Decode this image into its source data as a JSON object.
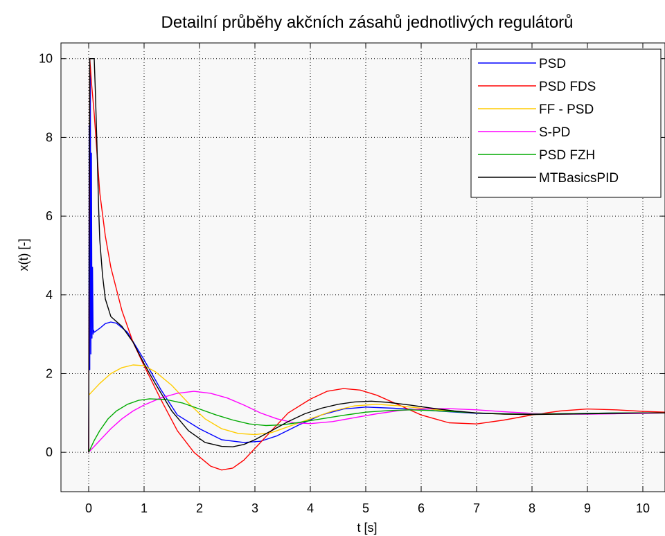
{
  "chart_data": {
    "type": "line",
    "title": "Detailní průběhy akčních zásahů jednotlivých regulátorů",
    "xlabel": "t [s]",
    "ylabel": "x(t) [-]",
    "xlim": [
      -0.5,
      10.4
    ],
    "ylim": [
      -1,
      10.4
    ],
    "xticks": [
      0,
      1,
      2,
      3,
      4,
      5,
      6,
      7,
      8,
      9,
      10
    ],
    "yticks": [
      0,
      2,
      4,
      6,
      8,
      10
    ],
    "xtick_labels": [
      "0",
      "1",
      "2",
      "3",
      "4",
      "5",
      "6",
      "7",
      "8",
      "9",
      "10"
    ],
    "ytick_labels": [
      "0",
      "2",
      "4",
      "6",
      "8",
      "10"
    ],
    "grid": true,
    "legend_position": "top-right",
    "background": "#f8f8f8",
    "series": [
      {
        "name": "PSD",
        "color": "#0000ff",
        "x": [
          0,
          0.01,
          0.02,
          0.03,
          0.04,
          0.05,
          0.06,
          0.07,
          0.08,
          0.09,
          0.1,
          0.2,
          0.3,
          0.4,
          0.5,
          0.7,
          1.0,
          1.3,
          1.6,
          2.0,
          2.4,
          2.8,
          3.1,
          3.4,
          3.8,
          4.2,
          4.6,
          5.0,
          5.5,
          6.0,
          6.5,
          7.0,
          7.5,
          8.0,
          8.5,
          9.0,
          9.5,
          10.0,
          10.4
        ],
        "y": [
          0,
          8.3,
          2.1,
          9.8,
          2.5,
          7.6,
          2.9,
          4.7,
          3.0,
          3.1,
          3.05,
          3.15,
          3.27,
          3.31,
          3.28,
          3.05,
          2.35,
          1.6,
          0.95,
          0.6,
          0.32,
          0.25,
          0.28,
          0.42,
          0.7,
          0.95,
          1.1,
          1.15,
          1.12,
          1.08,
          1.03,
          0.99,
          0.98,
          0.97,
          0.98,
          0.99,
          1.0,
          1.0,
          1.0
        ]
      },
      {
        "name": "PSD FDS",
        "color": "#ff0000",
        "x": [
          0,
          0.02,
          0.05,
          0.1,
          0.15,
          0.2,
          0.3,
          0.4,
          0.6,
          0.8,
          1.0,
          1.3,
          1.6,
          1.9,
          2.2,
          2.4,
          2.6,
          2.8,
          3.0,
          3.3,
          3.6,
          4.0,
          4.3,
          4.6,
          4.9,
          5.2,
          5.6,
          6.0,
          6.5,
          7.0,
          7.5,
          8.0,
          8.5,
          9.0,
          9.5,
          10.0,
          10.4
        ],
        "y": [
          0,
          10.0,
          9.4,
          8.6,
          7.6,
          6.6,
          5.5,
          4.7,
          3.6,
          2.8,
          2.2,
          1.35,
          0.55,
          0.0,
          -0.35,
          -0.45,
          -0.4,
          -0.2,
          0.1,
          0.55,
          1.0,
          1.35,
          1.55,
          1.62,
          1.58,
          1.45,
          1.2,
          0.95,
          0.75,
          0.72,
          0.82,
          0.95,
          1.05,
          1.1,
          1.08,
          1.04,
          1.02
        ]
      },
      {
        "name": "FF - PSD",
        "color": "#ffcc00",
        "x": [
          0,
          0.2,
          0.4,
          0.6,
          0.8,
          1.0,
          1.2,
          1.5,
          1.8,
          2.1,
          2.4,
          2.7,
          3.0,
          3.3,
          3.6,
          4.0,
          4.4,
          4.8,
          5.2,
          5.6,
          6.0,
          6.5,
          7.0,
          7.5,
          8.0,
          8.5,
          9.0,
          9.5,
          10.0,
          10.4
        ],
        "y": [
          1.45,
          1.75,
          2.0,
          2.15,
          2.22,
          2.2,
          2.05,
          1.7,
          1.25,
          0.85,
          0.6,
          0.48,
          0.45,
          0.5,
          0.65,
          0.85,
          1.05,
          1.18,
          1.22,
          1.18,
          1.12,
          1.05,
          1.0,
          0.97,
          0.96,
          0.97,
          0.98,
          0.99,
          1.0,
          1.0
        ]
      },
      {
        "name": "S-PD",
        "color": "#ff00ff",
        "x": [
          0,
          0.2,
          0.4,
          0.6,
          0.8,
          1.0,
          1.3,
          1.6,
          1.9,
          2.2,
          2.5,
          2.8,
          3.1,
          3.4,
          3.7,
          4.0,
          4.4,
          4.8,
          5.2,
          5.6,
          6.0,
          6.5,
          7.0,
          7.5,
          8.0,
          8.5,
          9.0,
          9.5,
          10.0,
          10.4
        ],
        "y": [
          0,
          0.3,
          0.6,
          0.85,
          1.05,
          1.2,
          1.38,
          1.5,
          1.55,
          1.5,
          1.38,
          1.2,
          1.0,
          0.85,
          0.75,
          0.73,
          0.78,
          0.88,
          0.98,
          1.06,
          1.1,
          1.11,
          1.08,
          1.03,
          0.99,
          0.97,
          0.97,
          0.98,
          0.99,
          1.0
        ]
      },
      {
        "name": "PSD FZH",
        "color": "#00aa00",
        "x": [
          0,
          0.1,
          0.2,
          0.35,
          0.5,
          0.7,
          0.9,
          1.1,
          1.4,
          1.7,
          2.0,
          2.3,
          2.6,
          2.9,
          3.2,
          3.5,
          3.8,
          4.2,
          4.6,
          5.0,
          5.4,
          5.8,
          6.2,
          6.6,
          7.0,
          7.5,
          8.0,
          8.5,
          9.0,
          9.5,
          10.0,
          10.4
        ],
        "y": [
          0,
          0.3,
          0.55,
          0.85,
          1.05,
          1.22,
          1.32,
          1.36,
          1.34,
          1.25,
          1.1,
          0.95,
          0.82,
          0.72,
          0.68,
          0.7,
          0.76,
          0.85,
          0.94,
          1.02,
          1.06,
          1.08,
          1.06,
          1.03,
          1.0,
          0.98,
          0.97,
          0.98,
          0.99,
          1.0,
          1.0,
          1.0
        ]
      },
      {
        "name": "MTBasicsPID",
        "color": "#000000",
        "x": [
          0,
          0.02,
          0.05,
          0.1,
          0.12,
          0.15,
          0.18,
          0.2,
          0.25,
          0.3,
          0.4,
          0.6,
          0.8,
          1.0,
          1.2,
          1.5,
          1.8,
          2.1,
          2.4,
          2.6,
          2.8,
          3.0,
          3.3,
          3.6,
          3.9,
          4.2,
          4.5,
          4.8,
          5.1,
          5.4,
          5.8,
          6.2,
          6.6,
          7.0,
          7.5,
          8.0,
          8.5,
          9.0,
          9.5,
          10.0,
          10.4
        ],
        "y": [
          0,
          10.0,
          10.0,
          10.0,
          9.2,
          7.8,
          6.2,
          5.4,
          4.5,
          3.9,
          3.45,
          3.2,
          2.8,
          2.25,
          1.75,
          1.05,
          0.55,
          0.25,
          0.15,
          0.14,
          0.2,
          0.32,
          0.55,
          0.78,
          0.98,
          1.12,
          1.22,
          1.28,
          1.3,
          1.27,
          1.2,
          1.12,
          1.05,
          1.0,
          0.97,
          0.96,
          0.97,
          0.98,
          0.99,
          1.0,
          1.0
        ]
      }
    ]
  }
}
